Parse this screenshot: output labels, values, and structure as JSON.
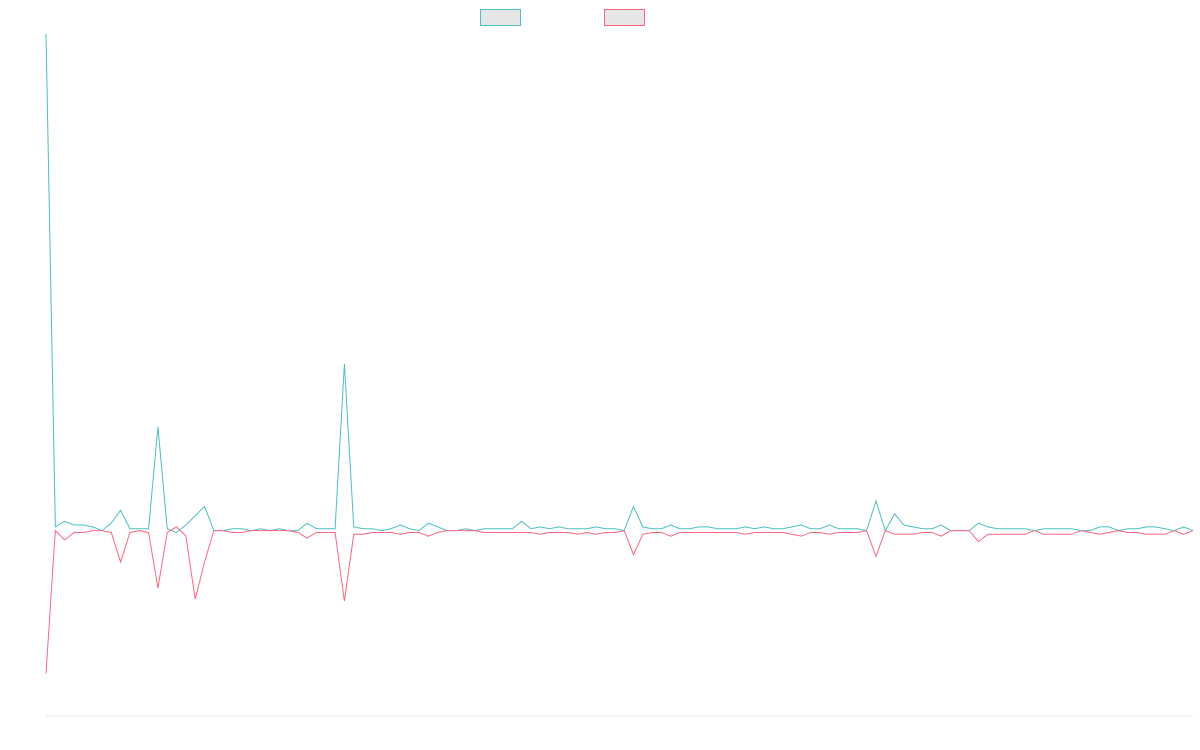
{
  "chart_data": {
    "type": "line",
    "title": "",
    "xlabel": "",
    "ylabel": "",
    "grid": false,
    "legend_placement": "top",
    "x": [
      1,
      2,
      3,
      4,
      5,
      6,
      7,
      8,
      9,
      10,
      11,
      12,
      13,
      14,
      15,
      16,
      17,
      18,
      19,
      20,
      21,
      22,
      23,
      24,
      25,
      26,
      27,
      28,
      29,
      30,
      31,
      32,
      33,
      34,
      35,
      36,
      37,
      38,
      39,
      40,
      41,
      42,
      43,
      44,
      45,
      46,
      47,
      48,
      49,
      50,
      51,
      52,
      53,
      54,
      55,
      56,
      57,
      58,
      59,
      60,
      61,
      62,
      63,
      64,
      65,
      66,
      67,
      68,
      69,
      70,
      71,
      72,
      73,
      74,
      75,
      76,
      77,
      78,
      79,
      80,
      81,
      82,
      83,
      84,
      85,
      86,
      87,
      88,
      89,
      90,
      91,
      92,
      93,
      94,
      95,
      96,
      97,
      98,
      99,
      100,
      101,
      102,
      103,
      104,
      105,
      106,
      107,
      108,
      109,
      110,
      111,
      112,
      113,
      114,
      115,
      116,
      117,
      118,
      119,
      120,
      121,
      122,
      123,
      124
    ],
    "ylim": [
      -100,
      270
    ],
    "series": [
      {
        "name": "",
        "color": "#4bc0c0",
        "values": [
          268,
          2,
          5,
          3,
          3,
          2,
          0,
          4,
          11,
          1,
          1,
          1,
          56,
          1,
          -1,
          3,
          8,
          13,
          0,
          0,
          1,
          1,
          0,
          1,
          0,
          1,
          0,
          0,
          4,
          1,
          1,
          1,
          90,
          2,
          1,
          1,
          0,
          1,
          3,
          1,
          0,
          4,
          2,
          0,
          0,
          1,
          0,
          1,
          1,
          1,
          1,
          5,
          1,
          2,
          1,
          2,
          1,
          1,
          1,
          2,
          1,
          1,
          0,
          13,
          2,
          1,
          1,
          3,
          1,
          1,
          2,
          2,
          1,
          1,
          1,
          2,
          1,
          2,
          1,
          1,
          2,
          3,
          1,
          1,
          3,
          1,
          1,
          1,
          0,
          16,
          0,
          9,
          3,
          2,
          1,
          1,
          3,
          0,
          0,
          0,
          4,
          2,
          1,
          1,
          1,
          1,
          0,
          1,
          1,
          1,
          1,
          0,
          0,
          2,
          2,
          0,
          1,
          1,
          2,
          2,
          1,
          0,
          2,
          0
        ]
      },
      {
        "name": "",
        "color": "#ff6384",
        "values": [
          -77,
          0,
          -5,
          -1,
          -1,
          0,
          0,
          -1,
          -17,
          -1,
          0,
          -1,
          -31,
          -1,
          2,
          -3,
          -37,
          -17,
          0,
          0,
          -1,
          -1,
          0,
          0,
          0,
          0,
          0,
          -1,
          -4,
          -1,
          -1,
          -1,
          -38,
          -2,
          -2,
          -1,
          -1,
          -1,
          -2,
          -1,
          -1,
          -3,
          -1,
          0,
          0,
          0,
          0,
          -1,
          -1,
          -1,
          -1,
          -1,
          -1,
          -2,
          -1,
          -1,
          -1,
          -2,
          -1,
          -2,
          -1,
          -1,
          0,
          -13,
          -2,
          -1,
          -1,
          -3,
          -1,
          -1,
          -1,
          -1,
          -1,
          -1,
          -1,
          -2,
          -1,
          -1,
          -1,
          -1,
          -2,
          -3,
          -1,
          -1,
          -2,
          -1,
          -1,
          -1,
          0,
          -14,
          0,
          -2,
          -2,
          -2,
          -1,
          -1,
          -3,
          0,
          0,
          0,
          -6,
          -2,
          -2,
          -2,
          -2,
          -2,
          0,
          -2,
          -2,
          -2,
          -2,
          0,
          -1,
          -2,
          -1,
          0,
          -1,
          -1,
          -2,
          -2,
          -2,
          0,
          -2,
          0
        ]
      }
    ]
  }
}
